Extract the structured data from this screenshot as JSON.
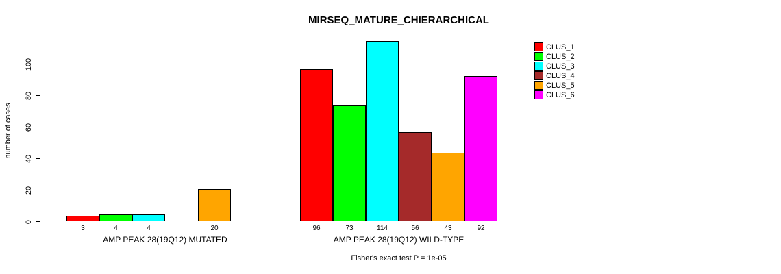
{
  "chart_data": {
    "type": "bar",
    "title": "MIRSEQ_MATURE_CHIERARCHICAL",
    "ylabel": "number of cases",
    "xlabel": "",
    "ylim": [
      0,
      114
    ],
    "yticks": [
      0,
      20,
      40,
      60,
      80,
      100
    ],
    "grid": false,
    "legend_position": "top-right",
    "clusters": [
      {
        "label": "CLUS_1",
        "color": "#ff0000"
      },
      {
        "label": "CLUS_2",
        "color": "#00ff00"
      },
      {
        "label": "CLUS_3",
        "color": "#00ffff"
      },
      {
        "label": "CLUS_4",
        "color": "#a52a2a"
      },
      {
        "label": "CLUS_5",
        "color": "#ffa500"
      },
      {
        "label": "CLUS_6",
        "color": "#ff00ff"
      }
    ],
    "groups": [
      {
        "label": "AMP PEAK 28(19Q12) MUTATED",
        "values": [
          3,
          4,
          4,
          0,
          20,
          0
        ],
        "bar_labels": [
          "3",
          "4",
          "4",
          "",
          "20",
          ""
        ]
      },
      {
        "label": "AMP PEAK 28(19Q12) WILD-TYPE",
        "values": [
          96,
          73,
          114,
          56,
          43,
          92
        ],
        "bar_labels": [
          "96",
          "73",
          "114",
          "56",
          "43",
          "92"
        ]
      }
    ],
    "annotation": "Fisher's exact test P = 1e-05"
  }
}
